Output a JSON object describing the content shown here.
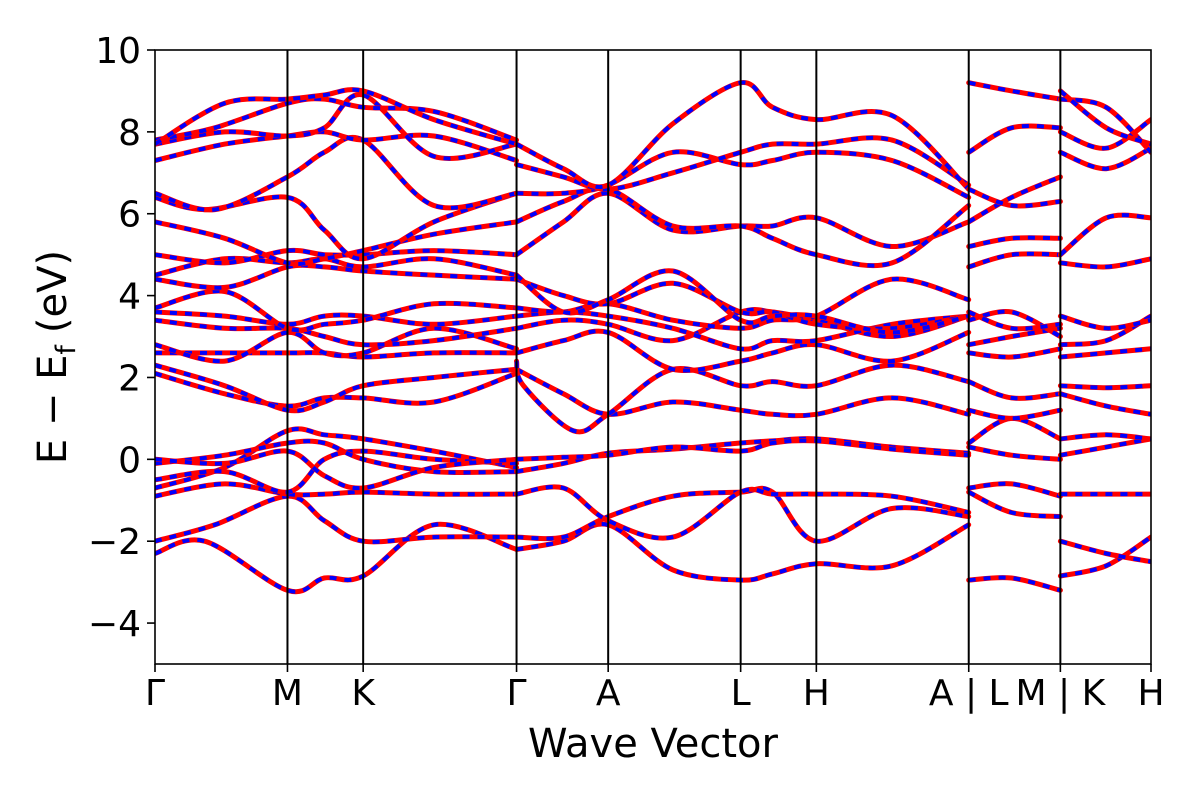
{
  "chart_data": {
    "type": "line",
    "xlabel": "Wave Vector",
    "ylabel": "E − E",
    "ylabel_sub": "f",
    "ylabel_unit": "(eV)",
    "ylim": [
      -5,
      10
    ],
    "yticks": [
      -4,
      -2,
      0,
      2,
      4,
      6,
      8,
      10
    ],
    "ytick_labels": [
      "−4",
      "−2",
      "0",
      "2",
      "4",
      "6",
      "8",
      "10"
    ],
    "xlim": [
      0,
      1
    ],
    "xticks": [
      {
        "x": 0.0,
        "label": "Γ"
      },
      {
        "x": 0.133,
        "label": "M"
      },
      {
        "x": 0.209,
        "label": "K"
      },
      {
        "x": 0.363,
        "label": "Γ"
      },
      {
        "x": 0.455,
        "label": "A"
      },
      {
        "x": 0.588,
        "label": "L"
      },
      {
        "x": 0.664,
        "label": "H"
      },
      {
        "x": 0.817,
        "label": "A | L"
      },
      {
        "x": 0.909,
        "label": "M | K"
      },
      {
        "x": 1.0,
        "label": "H"
      }
    ],
    "series_colors": {
      "dft": "#ff0000",
      "fit": "#0000ff"
    },
    "segments": [
      [
        0,
        0.817
      ],
      [
        0.817,
        0.909
      ],
      [
        0.909,
        1.0
      ]
    ],
    "bands": [
      {
        "x": [
          0,
          0.05,
          0.133,
          0.17,
          0.209,
          0.28,
          0.363
        ],
        "y": [
          -2.3,
          -2.0,
          -3.2,
          -2.9,
          -2.85,
          -1.6,
          -2.2
        ]
      },
      {
        "x": [
          0,
          0.06,
          0.133,
          0.17,
          0.209,
          0.28,
          0.363
        ],
        "y": [
          -2.0,
          -1.6,
          -0.9,
          -1.5,
          -2.0,
          -1.9,
          -1.9
        ]
      },
      {
        "x": [
          0,
          0.07,
          0.133,
          0.17,
          0.209,
          0.28,
          0.363
        ],
        "y": [
          -0.9,
          -0.6,
          -0.85,
          -0.85,
          -0.8,
          -0.85,
          -0.85
        ]
      },
      {
        "x": [
          0,
          0.07,
          0.133,
          0.17,
          0.209,
          0.28,
          0.363
        ],
        "y": [
          -0.7,
          -0.2,
          0.7,
          0.6,
          0.5,
          0.2,
          -0.2
        ]
      },
      {
        "x": [
          0,
          0.07,
          0.133,
          0.17,
          0.209,
          0.28,
          0.363
        ],
        "y": [
          -0.5,
          -0.3,
          -0.8,
          0.0,
          0.2,
          0.0,
          -0.1
        ]
      },
      {
        "x": [
          0,
          0.07,
          0.133,
          0.17,
          0.209,
          0.28,
          0.363
        ],
        "y": [
          -0.1,
          0.1,
          0.4,
          0.4,
          0.0,
          -0.3,
          -0.3
        ]
      },
      {
        "x": [
          0,
          0.07,
          0.133,
          0.17,
          0.209,
          0.28,
          0.363
        ],
        "y": [
          0.0,
          -0.1,
          0.2,
          -0.4,
          -0.7,
          -0.2,
          0.0
        ]
      },
      {
        "x": [
          0,
          0.07,
          0.133,
          0.17,
          0.209,
          0.28,
          0.363
        ],
        "y": [
          2.1,
          1.6,
          1.3,
          1.5,
          1.5,
          1.4,
          2.1
        ]
      },
      {
        "x": [
          0,
          0.07,
          0.133,
          0.17,
          0.209,
          0.28,
          0.363
        ],
        "y": [
          2.3,
          1.8,
          1.2,
          1.4,
          1.8,
          2.0,
          2.2
        ]
      },
      {
        "x": [
          0,
          0.07,
          0.133,
          0.17,
          0.209,
          0.28,
          0.363
        ],
        "y": [
          2.6,
          2.6,
          2.6,
          2.6,
          2.5,
          2.6,
          2.6
        ]
      },
      {
        "x": [
          0,
          0.07,
          0.133,
          0.17,
          0.209,
          0.28,
          0.363
        ],
        "y": [
          2.8,
          2.4,
          3.1,
          2.6,
          2.6,
          3.2,
          2.7
        ]
      },
      {
        "x": [
          0,
          0.07,
          0.133,
          0.17,
          0.209,
          0.28,
          0.363
        ],
        "y": [
          3.4,
          3.2,
          3.2,
          3.0,
          2.8,
          2.9,
          3.2
        ]
      },
      {
        "x": [
          0,
          0.07,
          0.133,
          0.17,
          0.209,
          0.28,
          0.363
        ],
        "y": [
          3.6,
          3.5,
          3.3,
          3.5,
          3.5,
          3.3,
          3.5
        ]
      },
      {
        "x": [
          0,
          0.07,
          0.133,
          0.17,
          0.209,
          0.28,
          0.363
        ],
        "y": [
          3.7,
          4.1,
          3.2,
          3.3,
          3.4,
          3.8,
          3.7
        ]
      },
      {
        "x": [
          0,
          0.07,
          0.133,
          0.17,
          0.209,
          0.28,
          0.363
        ],
        "y": [
          4.4,
          4.2,
          4.7,
          4.7,
          4.6,
          4.5,
          4.4
        ]
      },
      {
        "x": [
          0,
          0.07,
          0.133,
          0.17,
          0.209,
          0.28,
          0.363
        ],
        "y": [
          4.5,
          4.9,
          4.8,
          4.9,
          4.7,
          4.9,
          4.5
        ]
      },
      {
        "x": [
          0,
          0.07,
          0.133,
          0.17,
          0.209,
          0.28,
          0.363
        ],
        "y": [
          5.0,
          4.8,
          5.1,
          5.0,
          5.0,
          5.1,
          5.0
        ]
      },
      {
        "x": [
          0,
          0.07,
          0.133,
          0.17,
          0.209,
          0.28,
          0.363
        ],
        "y": [
          5.8,
          5.4,
          4.8,
          4.9,
          5.1,
          5.5,
          5.8
        ]
      },
      {
        "x": [
          0,
          0.05,
          0.133,
          0.17,
          0.209,
          0.28,
          0.363
        ],
        "y": [
          6.4,
          6.1,
          6.4,
          5.6,
          4.9,
          5.8,
          6.5
        ]
      },
      {
        "x": [
          0,
          0.06,
          0.133,
          0.17,
          0.209,
          0.28,
          0.363
        ],
        "y": [
          6.5,
          6.1,
          6.9,
          7.5,
          7.8,
          6.2,
          6.5
        ]
      },
      {
        "x": [
          0,
          0.07,
          0.133,
          0.17,
          0.209,
          0.28,
          0.363
        ],
        "y": [
          7.3,
          7.7,
          7.9,
          8.0,
          7.8,
          7.9,
          7.3
        ]
      },
      {
        "x": [
          0,
          0.07,
          0.133,
          0.17,
          0.209,
          0.28,
          0.363
        ],
        "y": [
          7.7,
          8.0,
          7.9,
          8.1,
          8.9,
          7.4,
          7.7
        ]
      },
      {
        "x": [
          0,
          0.06,
          0.133,
          0.17,
          0.209,
          0.28,
          0.363
        ],
        "y": [
          7.8,
          8.1,
          8.7,
          8.8,
          8.6,
          8.5,
          7.8
        ]
      },
      {
        "x": [
          0,
          0.07,
          0.133,
          0.17,
          0.209,
          0.28,
          0.363
        ],
        "y": [
          7.7,
          8.7,
          8.8,
          8.9,
          9.0,
          8.3,
          7.7
        ]
      },
      {
        "x": [
          0.363,
          0.41,
          0.455,
          0.52,
          0.588,
          0.62,
          0.664,
          0.74,
          0.817
        ],
        "y": [
          -2.2,
          -2.0,
          -1.6,
          -2.7,
          -2.95,
          -2.8,
          -2.55,
          -2.6,
          -1.6
        ]
      },
      {
        "x": [
          0.363,
          0.41,
          0.455,
          0.52,
          0.588,
          0.62,
          0.664,
          0.74,
          0.817
        ],
        "y": [
          -1.9,
          -1.9,
          -1.4,
          -0.9,
          -0.8,
          -0.8,
          -2.0,
          -1.2,
          -1.4
        ]
      },
      {
        "x": [
          0.363,
          0.41,
          0.455,
          0.52,
          0.588,
          0.62,
          0.664,
          0.74,
          0.817
        ],
        "y": [
          -0.85,
          -0.7,
          -1.5,
          -1.9,
          -0.8,
          -0.85,
          -0.85,
          -0.9,
          -1.3
        ]
      },
      {
        "x": [
          0.363,
          0.41,
          0.455,
          0.52,
          0.588,
          0.62,
          0.664,
          0.74,
          0.817
        ],
        "y": [
          -0.3,
          -0.1,
          0.15,
          0.25,
          0.4,
          0.45,
          0.5,
          0.3,
          0.15
        ]
      },
      {
        "x": [
          0.363,
          0.41,
          0.455,
          0.52,
          0.588,
          0.62,
          0.664,
          0.74,
          0.817
        ],
        "y": [
          0.0,
          0.05,
          0.1,
          0.3,
          0.2,
          0.4,
          0.45,
          0.25,
          0.1
        ]
      },
      {
        "x": [
          0.363,
          0.41,
          0.455,
          0.52,
          0.588,
          0.62,
          0.664,
          0.74,
          0.817
        ],
        "y": [
          2.2,
          1.6,
          1.1,
          1.4,
          1.2,
          1.1,
          1.1,
          1.5,
          1.1
        ]
      },
      {
        "x": [
          0.363,
          0.37,
          0.42,
          0.455,
          0.52,
          0.588,
          0.62,
          0.664,
          0.74,
          0.817
        ],
        "y": [
          2.4,
          1.8,
          0.7,
          1.1,
          2.2,
          1.8,
          1.9,
          1.8,
          2.3,
          1.9
        ]
      },
      {
        "x": [
          0.363,
          0.41,
          0.455,
          0.52,
          0.588,
          0.62,
          0.664,
          0.74,
          0.817
        ],
        "y": [
          2.6,
          2.9,
          3.1,
          2.2,
          2.4,
          2.6,
          2.8,
          2.4,
          3.1
        ]
      },
      {
        "x": [
          0.363,
          0.41,
          0.455,
          0.52,
          0.588,
          0.62,
          0.664,
          0.74,
          0.817
        ],
        "y": [
          3.2,
          3.4,
          3.3,
          2.9,
          3.6,
          3.6,
          3.4,
          3.0,
          3.5
        ]
      },
      {
        "x": [
          0.363,
          0.41,
          0.455,
          0.52,
          0.588,
          0.62,
          0.664,
          0.74,
          0.817
        ],
        "y": [
          3.5,
          3.6,
          3.5,
          3.2,
          2.7,
          2.9,
          2.9,
          3.3,
          3.5
        ]
      },
      {
        "x": [
          0.363,
          0.41,
          0.455,
          0.52,
          0.588,
          0.62,
          0.664,
          0.74,
          0.817
        ],
        "y": [
          3.7,
          3.6,
          3.8,
          3.4,
          3.2,
          3.4,
          3.5,
          4.4,
          3.9
        ]
      },
      {
        "x": [
          0.363,
          0.41,
          0.455,
          0.52,
          0.588,
          0.62,
          0.664,
          0.74,
          0.817
        ],
        "y": [
          4.4,
          4.0,
          3.8,
          4.3,
          3.6,
          3.6,
          3.3,
          3.2,
          3.5
        ]
      },
      {
        "x": [
          0.363,
          0.41,
          0.455,
          0.52,
          0.588,
          0.62,
          0.664,
          0.74,
          0.817
        ],
        "y": [
          4.5,
          3.6,
          3.9,
          4.6,
          3.4,
          3.5,
          3.5,
          3.1,
          3.5
        ]
      },
      {
        "x": [
          0.363,
          0.41,
          0.455,
          0.52,
          0.588,
          0.62,
          0.664,
          0.74,
          0.817
        ],
        "y": [
          5.0,
          5.8,
          6.5,
          5.6,
          5.7,
          5.7,
          5.9,
          5.2,
          5.8
        ]
      },
      {
        "x": [
          0.363,
          0.41,
          0.455,
          0.52,
          0.588,
          0.62,
          0.664,
          0.74,
          0.817
        ],
        "y": [
          5.8,
          6.3,
          6.6,
          5.7,
          5.7,
          5.4,
          5.0,
          4.8,
          6.2
        ]
      },
      {
        "x": [
          0.363,
          0.41,
          0.455,
          0.52,
          0.588,
          0.62,
          0.664,
          0.74,
          0.817
        ],
        "y": [
          6.5,
          6.5,
          6.7,
          7.5,
          7.2,
          7.3,
          7.5,
          7.3,
          6.4
        ]
      },
      {
        "x": [
          0.363,
          0.41,
          0.455,
          0.52,
          0.588,
          0.62,
          0.664,
          0.74,
          0.817
        ],
        "y": [
          7.2,
          6.9,
          6.6,
          7.0,
          7.5,
          7.7,
          7.7,
          7.8,
          6.7
        ]
      },
      {
        "x": [
          0.363,
          0.41,
          0.455,
          0.52,
          0.588,
          0.62,
          0.664,
          0.74,
          0.817
        ],
        "y": [
          7.7,
          7.1,
          6.7,
          8.2,
          9.2,
          8.6,
          8.3,
          8.4,
          6.6
        ]
      },
      {
        "x": [
          0.817,
          0.86,
          0.909
        ],
        "y": [
          -2.95,
          -2.9,
          -3.2
        ]
      },
      {
        "x": [
          0.817,
          0.86,
          0.909
        ],
        "y": [
          -0.8,
          -1.3,
          -1.4
        ]
      },
      {
        "x": [
          0.817,
          0.86,
          0.909
        ],
        "y": [
          -0.7,
          -0.6,
          -0.9
        ]
      },
      {
        "x": [
          0.817,
          0.86,
          0.909
        ],
        "y": [
          0.3,
          0.1,
          0.0
        ]
      },
      {
        "x": [
          0.817,
          0.86,
          0.909
        ],
        "y": [
          0.4,
          1.0,
          0.5
        ]
      },
      {
        "x": [
          0.817,
          0.86,
          0.909
        ],
        "y": [
          1.2,
          1.0,
          1.2
        ]
      },
      {
        "x": [
          0.817,
          0.86,
          0.909
        ],
        "y": [
          1.9,
          1.5,
          1.6
        ]
      },
      {
        "x": [
          0.817,
          0.86,
          0.909
        ],
        "y": [
          2.6,
          2.5,
          2.7
        ]
      },
      {
        "x": [
          0.817,
          0.86,
          0.909
        ],
        "y": [
          2.8,
          3.0,
          3.2
        ]
      },
      {
        "x": [
          0.817,
          0.86,
          0.909
        ],
        "y": [
          3.4,
          3.6,
          3.0
        ]
      },
      {
        "x": [
          0.817,
          0.86,
          0.909
        ],
        "y": [
          3.6,
          3.2,
          3.3
        ]
      },
      {
        "x": [
          0.817,
          0.86,
          0.909
        ],
        "y": [
          4.7,
          5.0,
          5.0
        ]
      },
      {
        "x": [
          0.817,
          0.86,
          0.909
        ],
        "y": [
          5.2,
          5.4,
          5.4
        ]
      },
      {
        "x": [
          0.817,
          0.86,
          0.909
        ],
        "y": [
          5.8,
          6.4,
          6.9
        ]
      },
      {
        "x": [
          0.817,
          0.86,
          0.909
        ],
        "y": [
          6.6,
          6.2,
          6.3
        ]
      },
      {
        "x": [
          0.817,
          0.86,
          0.909
        ],
        "y": [
          7.5,
          8.1,
          8.1
        ]
      },
      {
        "x": [
          0.817,
          0.86,
          0.909
        ],
        "y": [
          9.2,
          9.0,
          8.8
        ]
      },
      {
        "x": [
          0.909,
          0.955,
          1.0
        ],
        "y": [
          -2.85,
          -2.6,
          -1.9
        ]
      },
      {
        "x": [
          0.909,
          0.955,
          1.0
        ],
        "y": [
          -2.0,
          -2.3,
          -2.5
        ]
      },
      {
        "x": [
          0.909,
          0.955,
          1.0
        ],
        "y": [
          -0.85,
          -0.85,
          -0.85
        ]
      },
      {
        "x": [
          0.909,
          0.955,
          1.0
        ],
        "y": [
          0.1,
          0.3,
          0.5
        ]
      },
      {
        "x": [
          0.909,
          0.955,
          1.0
        ],
        "y": [
          0.5,
          0.6,
          0.5
        ]
      },
      {
        "x": [
          0.909,
          0.955,
          1.0
        ],
        "y": [
          1.6,
          1.3,
          1.1
        ]
      },
      {
        "x": [
          0.909,
          0.955,
          1.0
        ],
        "y": [
          1.8,
          1.75,
          1.8
        ]
      },
      {
        "x": [
          0.909,
          0.955,
          1.0
        ],
        "y": [
          2.5,
          2.6,
          2.7
        ]
      },
      {
        "x": [
          0.909,
          0.955,
          1.0
        ],
        "y": [
          2.8,
          2.9,
          3.5
        ]
      },
      {
        "x": [
          0.909,
          0.955,
          1.0
        ],
        "y": [
          3.5,
          3.2,
          3.4
        ]
      },
      {
        "x": [
          0.909,
          0.955,
          1.0
        ],
        "y": [
          4.8,
          4.7,
          4.9
        ]
      },
      {
        "x": [
          0.909,
          0.955,
          1.0
        ],
        "y": [
          5.0,
          5.9,
          5.9
        ]
      },
      {
        "x": [
          0.909,
          0.955,
          1.0
        ],
        "y": [
          7.5,
          7.1,
          7.6
        ]
      },
      {
        "x": [
          0.909,
          0.955,
          1.0
        ],
        "y": [
          8.0,
          7.6,
          8.3
        ]
      },
      {
        "x": [
          0.909,
          0.955,
          1.0
        ],
        "y": [
          8.8,
          8.6,
          7.5
        ]
      },
      {
        "x": [
          0.909,
          0.955,
          1.0
        ],
        "y": [
          9.0,
          8.1,
          7.7
        ]
      }
    ]
  }
}
